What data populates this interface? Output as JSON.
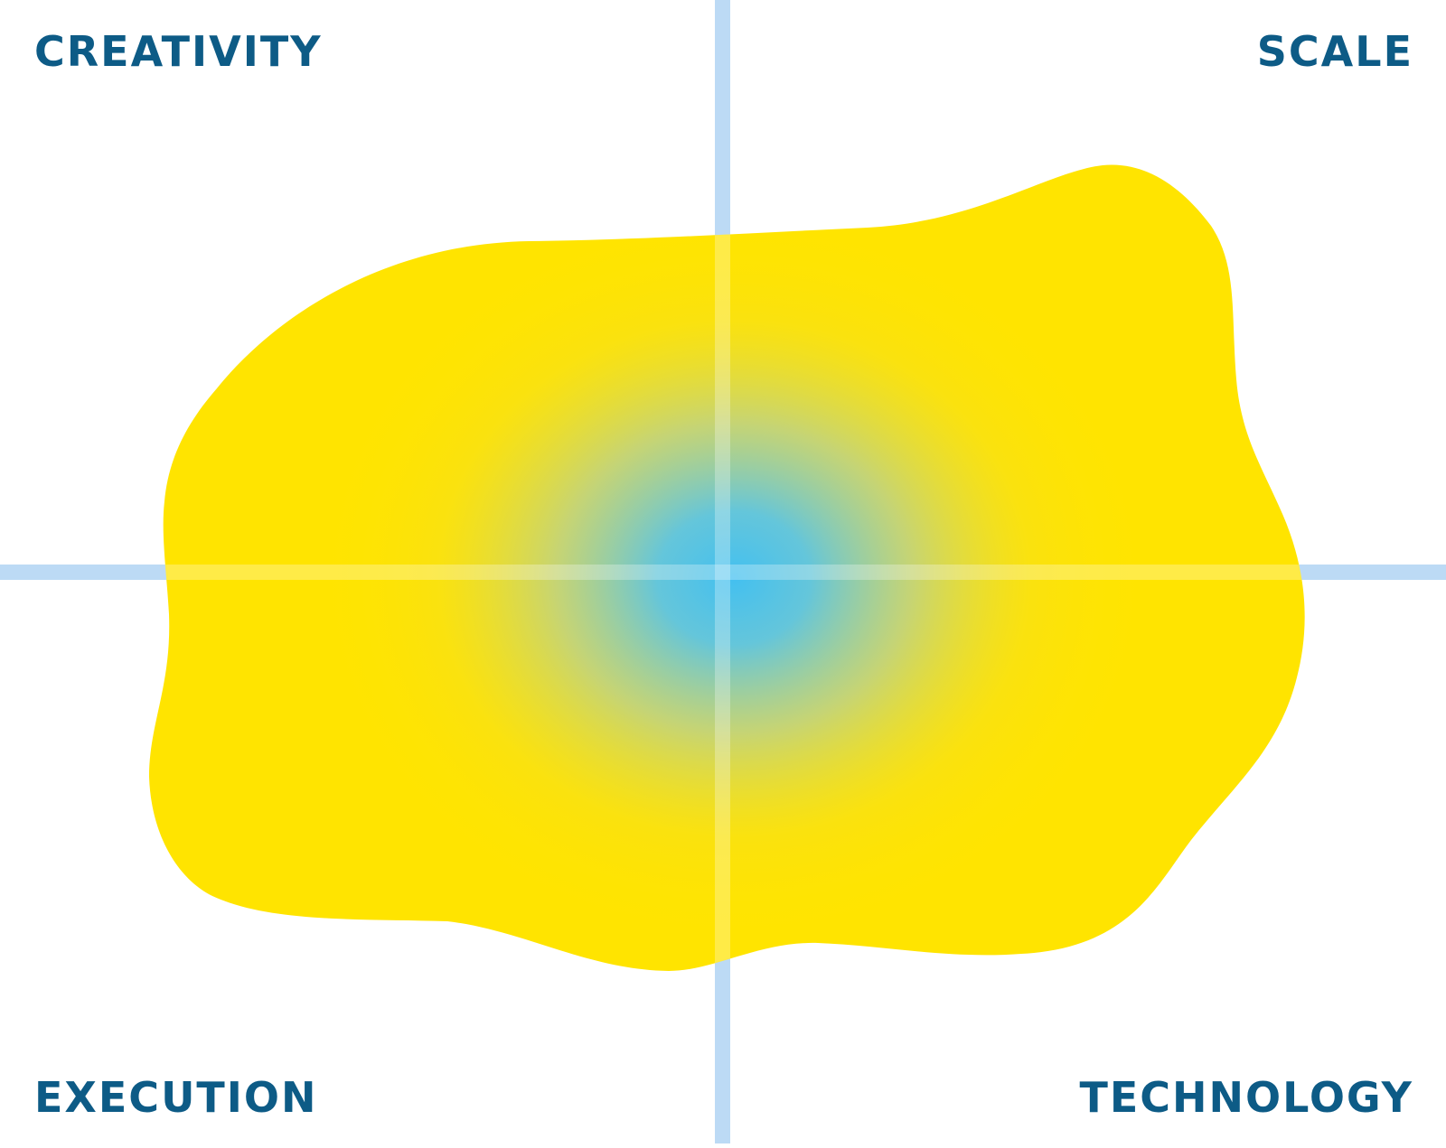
{
  "labels": {
    "top_left": "CREATIVITY",
    "top_right": "SCALE",
    "bottom_left": "EXECUTION",
    "bottom_right": "TECHNOLOGY"
  },
  "colors": {
    "label": "#0d5b86",
    "axis": "#bcdaf5",
    "blob": "#ffe400",
    "center_glow": "#43c0f0",
    "background": "#ffffff"
  }
}
